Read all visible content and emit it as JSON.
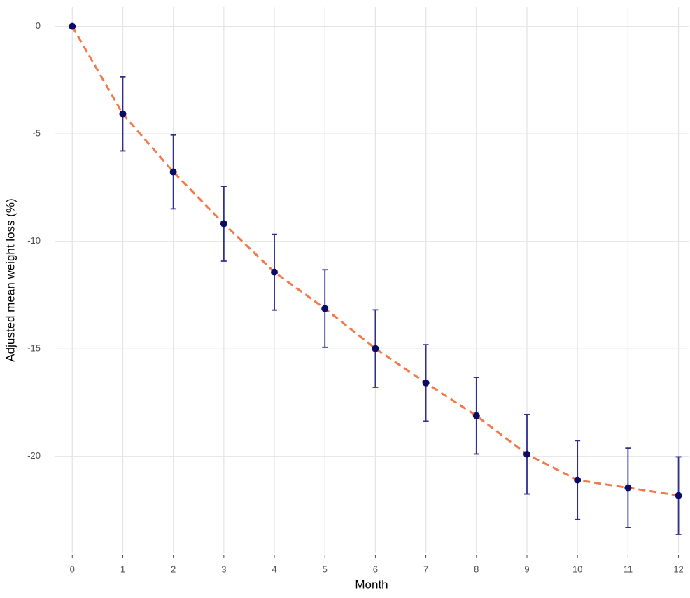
{
  "chart_data": {
    "type": "line",
    "x_label": "Month",
    "y_label": "Adjusted mean weight loss (%)",
    "x": [
      0,
      1,
      2,
      3,
      4,
      5,
      6,
      7,
      8,
      9,
      10,
      11,
      12
    ],
    "values": [
      0,
      -4.07,
      -6.77,
      -9.18,
      -11.43,
      -13.12,
      -14.98,
      -16.58,
      -18.11,
      -19.9,
      -21.1,
      -21.46,
      -21.82
    ],
    "errors": [
      null,
      1.72,
      1.72,
      1.74,
      1.76,
      1.8,
      1.8,
      1.78,
      1.78,
      1.85,
      1.83,
      1.84,
      1.8
    ],
    "line_color": "#f4794a",
    "point_color": "#0b0b66",
    "error_color": "#2e2e8f",
    "xlim": [
      -0.35,
      12.2
    ],
    "ylim": [
      -24.5,
      0.9
    ],
    "xticks": [
      0,
      1,
      2,
      3,
      4,
      5,
      6,
      7,
      8,
      9,
      10,
      11,
      12
    ],
    "yticks": [
      0,
      -5,
      -10,
      -15,
      -20
    ],
    "grid": true
  }
}
